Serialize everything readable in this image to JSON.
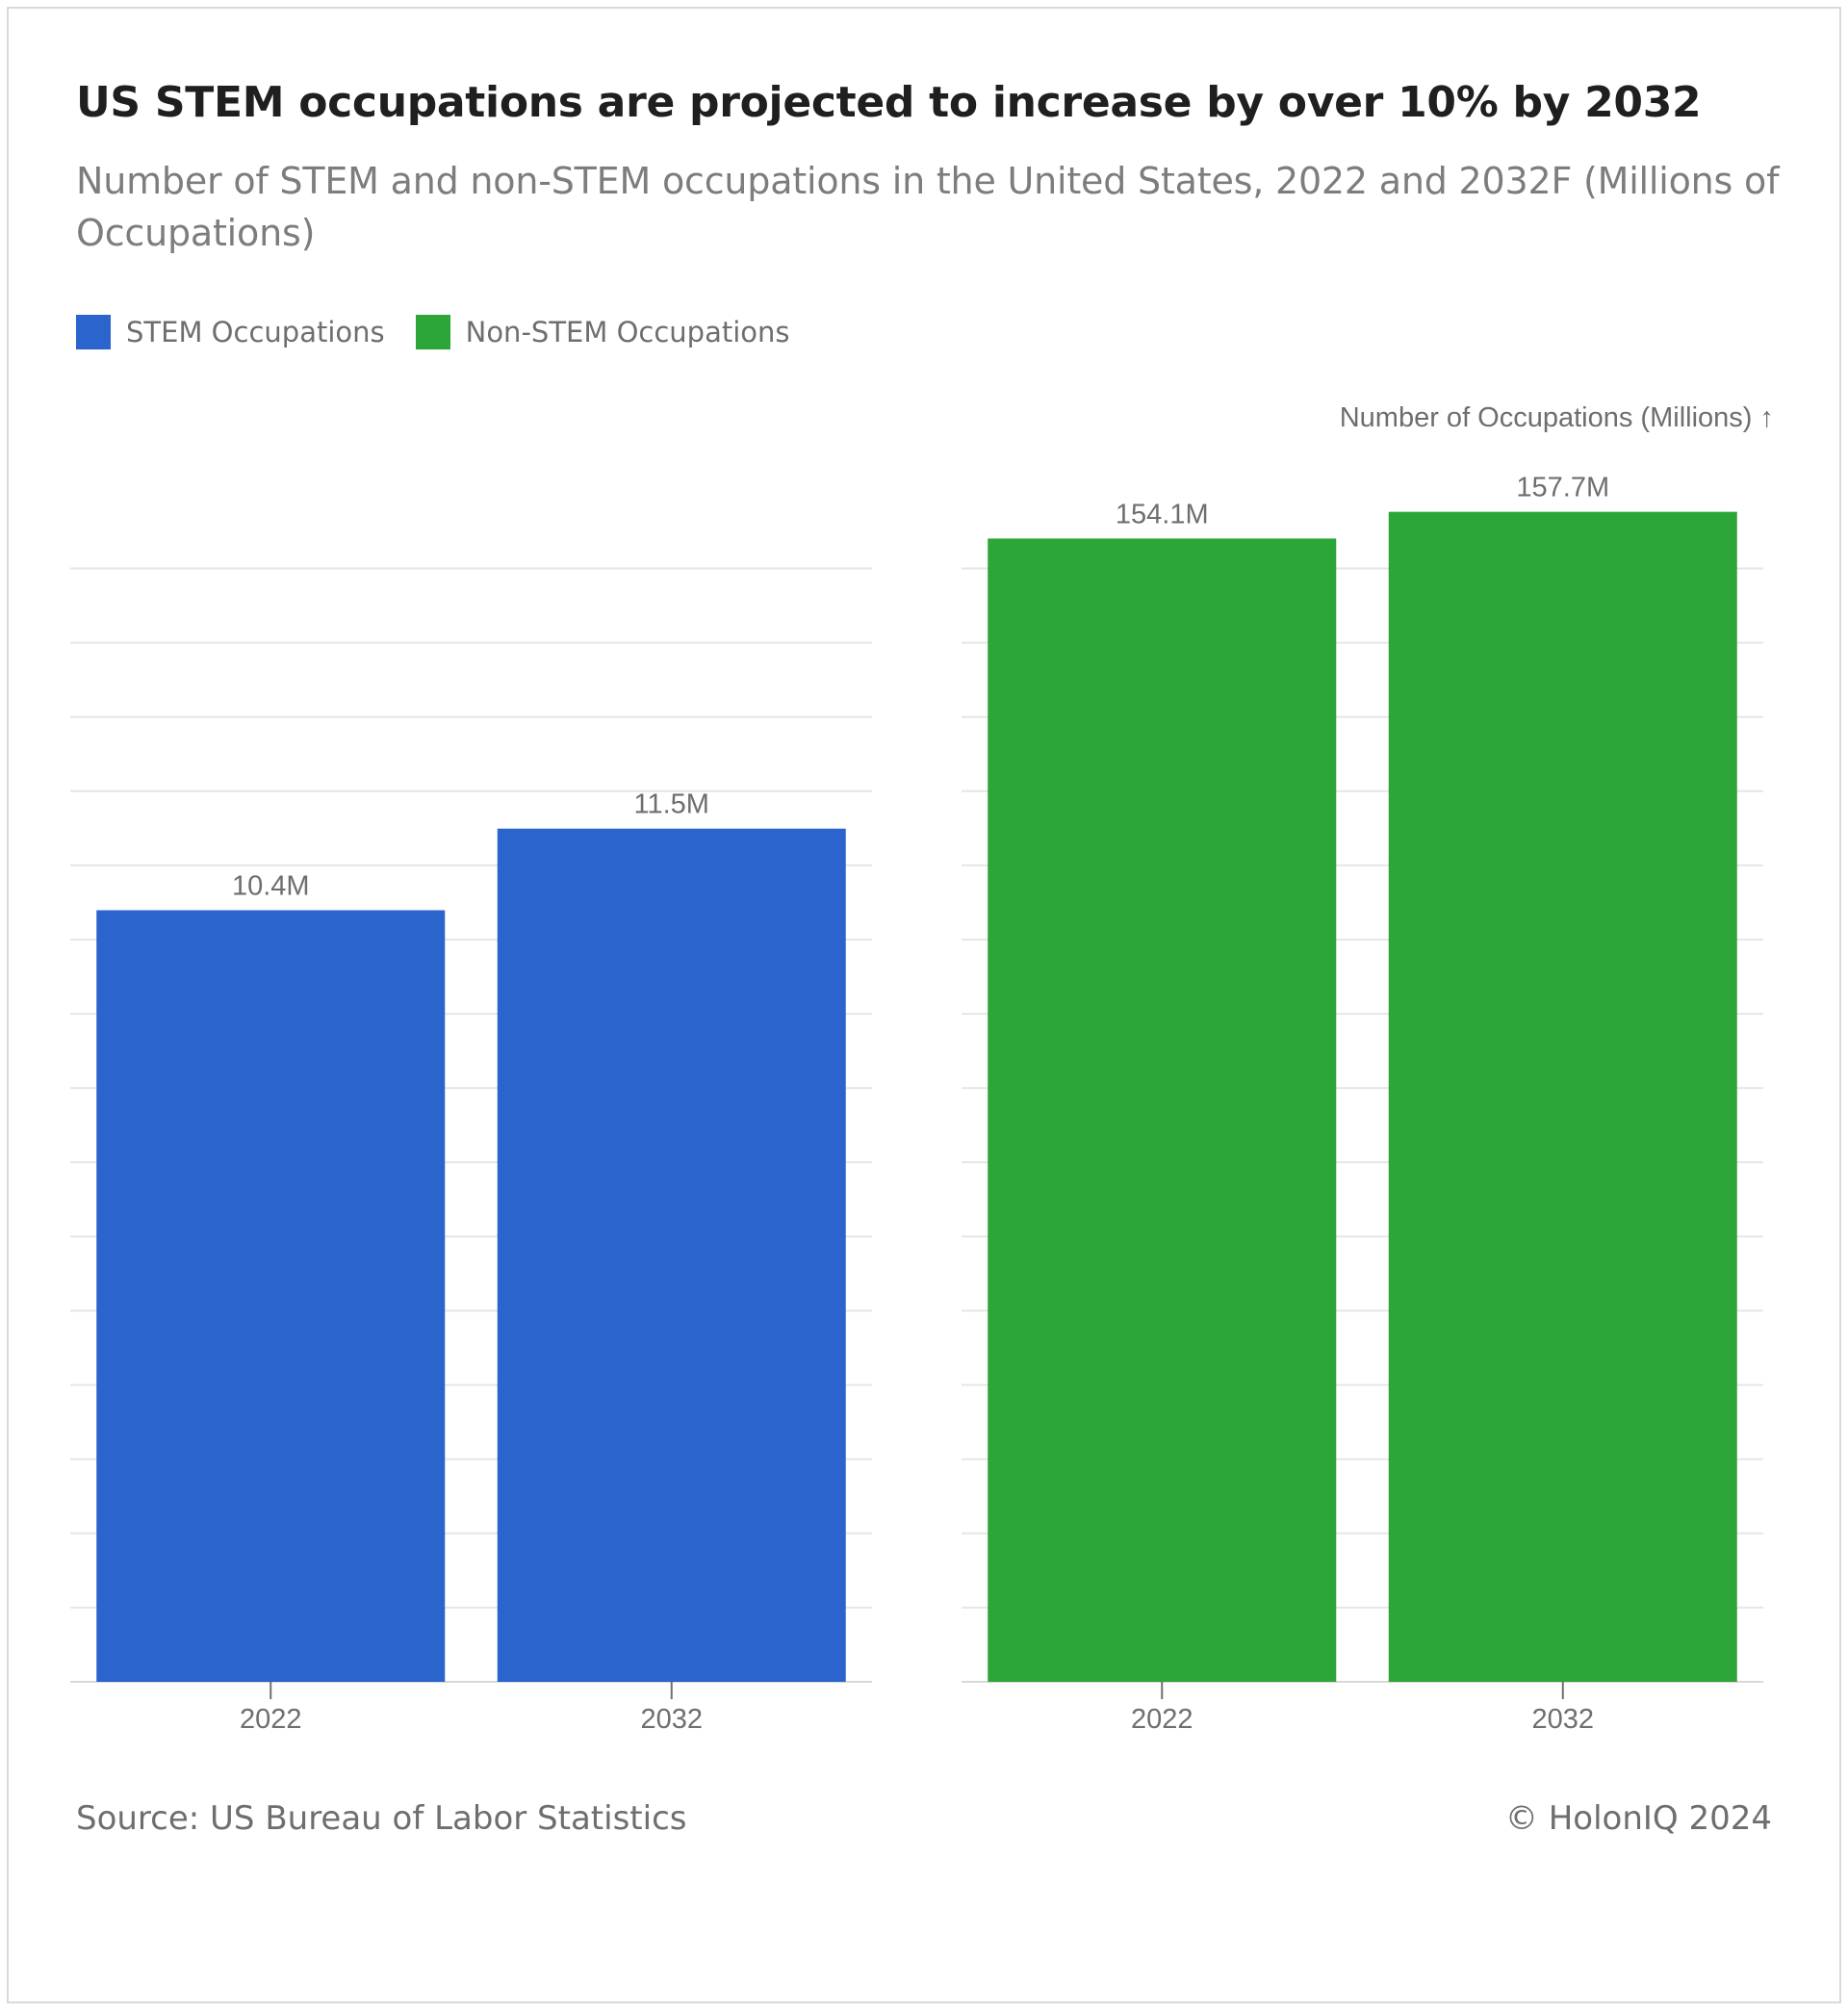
{
  "chart_data": {
    "type": "bar",
    "title": "US STEM occupations are projected to increase by over 10% by 2032",
    "subtitle": "Number of STEM and non-STEM occupations in the United States, 2022 and 2032F (Millions of Occupations)",
    "ylabel": "Number of Occupations (Millions) ↑",
    "grid": true,
    "legend_placement": "top-left",
    "categories": [
      "2022",
      "2032"
    ],
    "series": [
      {
        "name": "STEM Occupations",
        "color": "#2a64cc",
        "values": [
          10.4,
          11.5
        ],
        "labels": [
          "10.4M",
          "11.5M"
        ]
      },
      {
        "name": "Non-STEM Occupations",
        "color": "#2ca636",
        "values": [
          154.1,
          157.7
        ],
        "labels": [
          "154.1M",
          "157.7M"
        ]
      }
    ],
    "panels": [
      {
        "series_index": 0,
        "ylim": [
          0,
          15
        ]
      },
      {
        "series_index": 1,
        "ylim": [
          0,
          150
        ]
      }
    ]
  },
  "footer": {
    "source": "Source: US Bureau of Labor Statistics",
    "copyright": "© HolonIQ 2024"
  }
}
